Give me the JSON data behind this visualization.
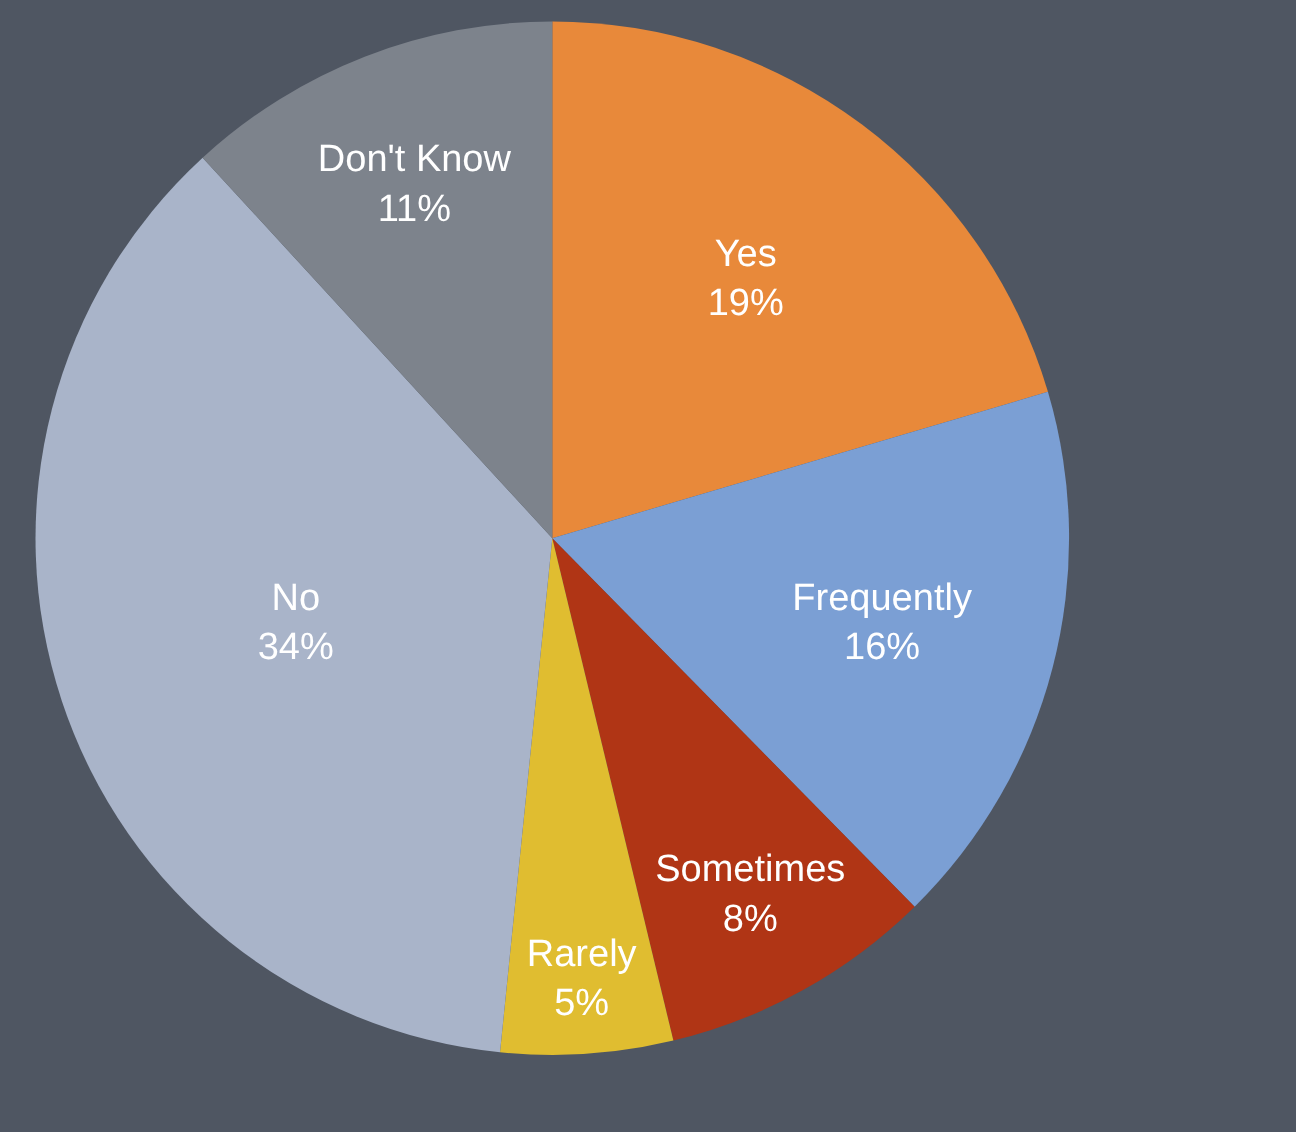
{
  "chart_data": {
    "type": "pie",
    "categories": [
      "Yes",
      "Frequently",
      "Sometimes",
      "Rarely",
      "No",
      "Don't Know"
    ],
    "values": [
      19,
      16,
      8,
      5,
      34,
      11
    ],
    "value_labels": [
      "19%",
      "16%",
      "8%",
      "5%",
      "34%",
      "11%"
    ],
    "colors": [
      "#e8893a",
      "#7b9fd4",
      "#b03515",
      "#e0bd30",
      "#a9b4c9",
      "#7d838c"
    ],
    "legend": false
  }
}
